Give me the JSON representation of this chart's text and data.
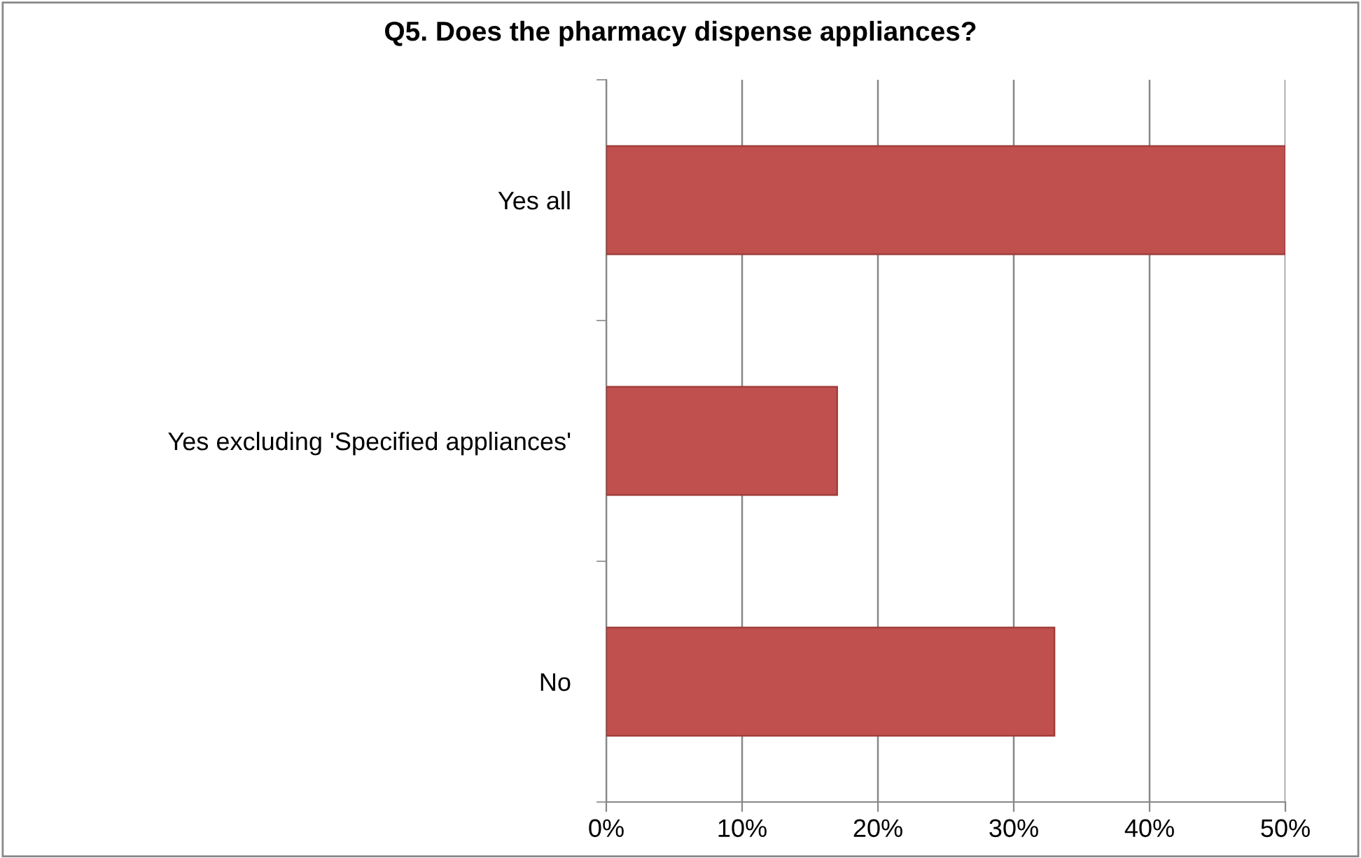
{
  "chart_data": {
    "type": "bar",
    "orientation": "horizontal",
    "title": "Q5. Does the pharmacy dispense appliances?",
    "categories": [
      "Yes all",
      "Yes excluding 'Specified appliances'",
      "No"
    ],
    "values": [
      50,
      17,
      33
    ],
    "color": "#c0504d",
    "xlim": [
      0,
      50
    ],
    "xticks": [
      {
        "value": 0,
        "label": "0%"
      },
      {
        "value": 10,
        "label": "10%"
      },
      {
        "value": 20,
        "label": "20%"
      },
      {
        "value": 30,
        "label": "30%"
      },
      {
        "value": 40,
        "label": "40%"
      },
      {
        "value": 50,
        "label": "50%"
      }
    ],
    "grid": "x",
    "legend": false
  }
}
